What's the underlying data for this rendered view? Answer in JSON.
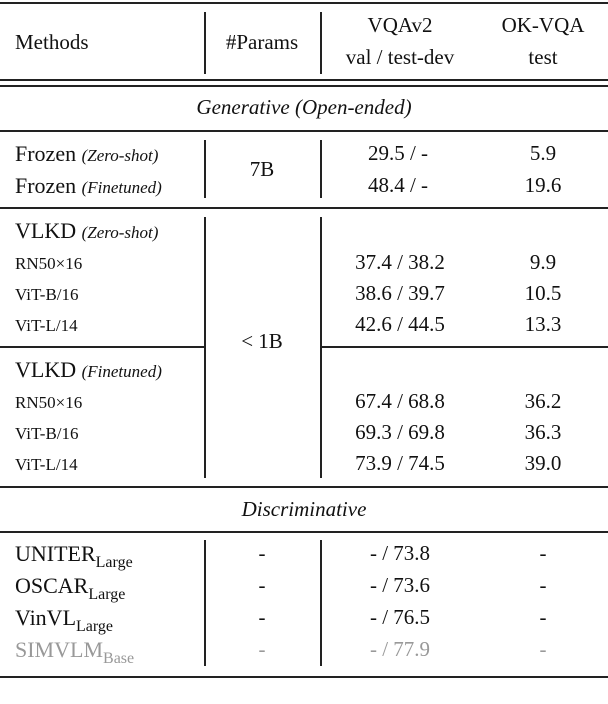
{
  "header": {
    "methods": "Methods",
    "params": "#Params",
    "vqa_title": "VQAv2",
    "vqa_sub": "val / test-dev",
    "ok_title": "OK-VQA",
    "ok_sub": "test"
  },
  "sections": {
    "generative": "Generative (Open-ended)",
    "discriminative": "Discriminative"
  },
  "frozen": {
    "params": "7B",
    "rows": [
      {
        "name": "Frozen",
        "tag": "(Zero-shot)",
        "vqa": "29.5 / -",
        "ok": "5.9"
      },
      {
        "name": "Frozen",
        "tag": "(Finetuned)",
        "vqa": "48.4 / -",
        "ok": "19.6"
      }
    ]
  },
  "vlkd_params": "< 1B",
  "vlkd_zero": {
    "name": "VLKD",
    "tag": "(Zero-shot)",
    "rows": [
      {
        "name": "RN50×16",
        "vqa": "37.4 / 38.2",
        "ok": "9.9"
      },
      {
        "name": "ViT-B/16",
        "vqa": "38.6 / 39.7",
        "ok": "10.5"
      },
      {
        "name": "ViT-L/14",
        "vqa": "42.6 / 44.5",
        "ok": "13.3"
      }
    ]
  },
  "vlkd_fine": {
    "name": "VLKD",
    "tag": "(Finetuned)",
    "rows": [
      {
        "name": "RN50×16",
        "vqa": "67.4 / 68.8",
        "ok": "36.2"
      },
      {
        "name": "ViT-B/16",
        "vqa": "69.3 / 69.8",
        "ok": "36.3"
      },
      {
        "name": "ViT-L/14",
        "vqa": "73.9 / 74.5",
        "ok": "39.0"
      }
    ]
  },
  "discriminative_rows": [
    {
      "name": "UNITER",
      "sub": "Large",
      "params": "-",
      "vqa": "- / 73.8",
      "ok": "-"
    },
    {
      "name": "OSCAR",
      "sub": "Large",
      "params": "-",
      "vqa": "- / 73.6",
      "ok": "-"
    },
    {
      "name": "VinVL",
      "sub": "Large",
      "params": "-",
      "vqa": "- / 76.5",
      "ok": "-"
    },
    {
      "name": "SIMVLM",
      "sub": "Base",
      "params": "-",
      "vqa": "- / 77.9",
      "ok": "-"
    }
  ],
  "colors": {
    "text": "#111111",
    "rule": "#222222",
    "muted": "#999999"
  }
}
